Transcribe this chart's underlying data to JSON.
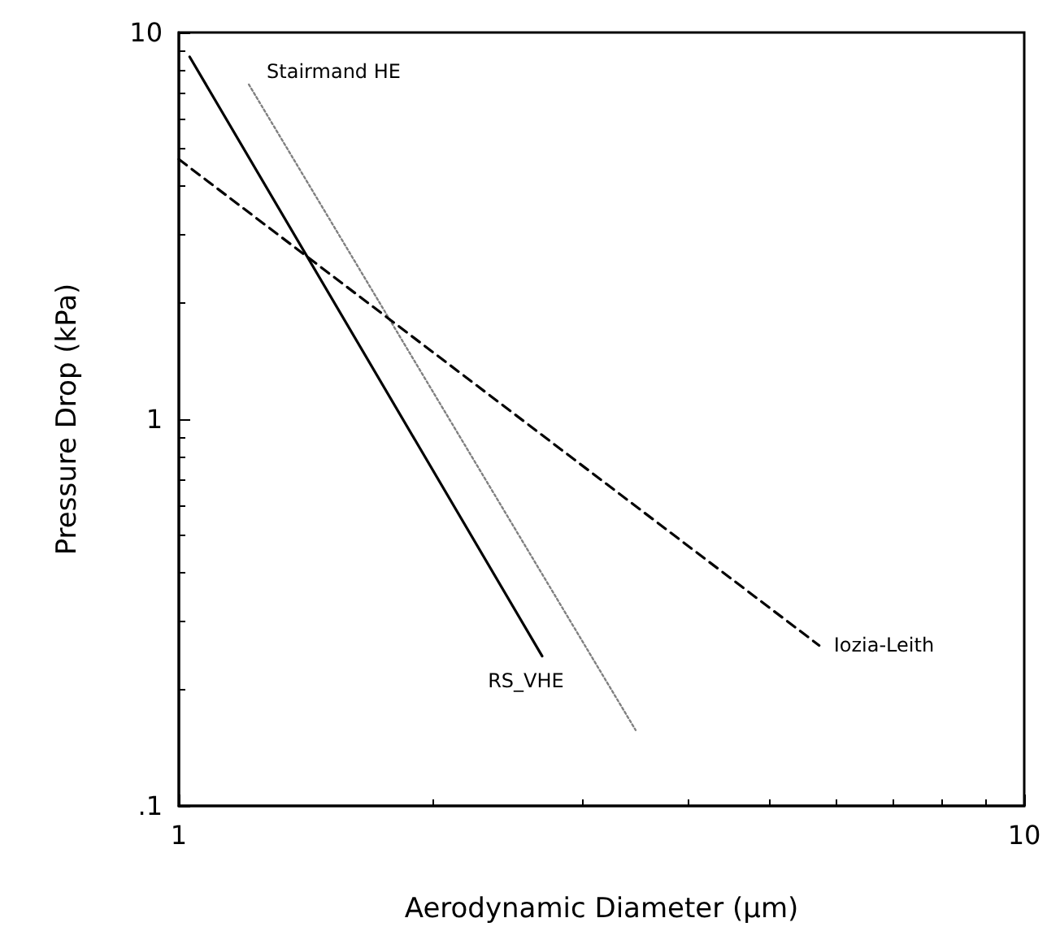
{
  "chart_data": {
    "type": "line",
    "xlabel": "Aerodynamic Diameter (µm)",
    "ylabel": "Pressure Drop (kPa)",
    "log": "xy",
    "grid": false,
    "legend": false,
    "marker": "none",
    "xlim": [
      1,
      10
    ],
    "xticks": [
      1,
      10
    ],
    "ylim": [
      0.1,
      10
    ],
    "yticks": [
      {
        "value": 0.1,
        "label": ".1"
      },
      1,
      10
    ],
    "series": [
      {
        "name": "RS_VHE",
        "color": "#000000",
        "line_style": "solid",
        "x": [
          1.03,
          2.69
        ],
        "values": [
          8.65,
          0.244
        ]
      },
      {
        "name": "Stairmand HE",
        "color": "#808080",
        "line_style": "dotted",
        "x": [
          1.21,
          3.47
        ],
        "values": [
          7.34,
          0.157
        ]
      },
      {
        "name": "Iozia-Leith",
        "color": "#000000",
        "line_style": "dashed",
        "x": [
          1,
          5.72
        ],
        "values": [
          4.7,
          0.26
        ]
      }
    ]
  }
}
